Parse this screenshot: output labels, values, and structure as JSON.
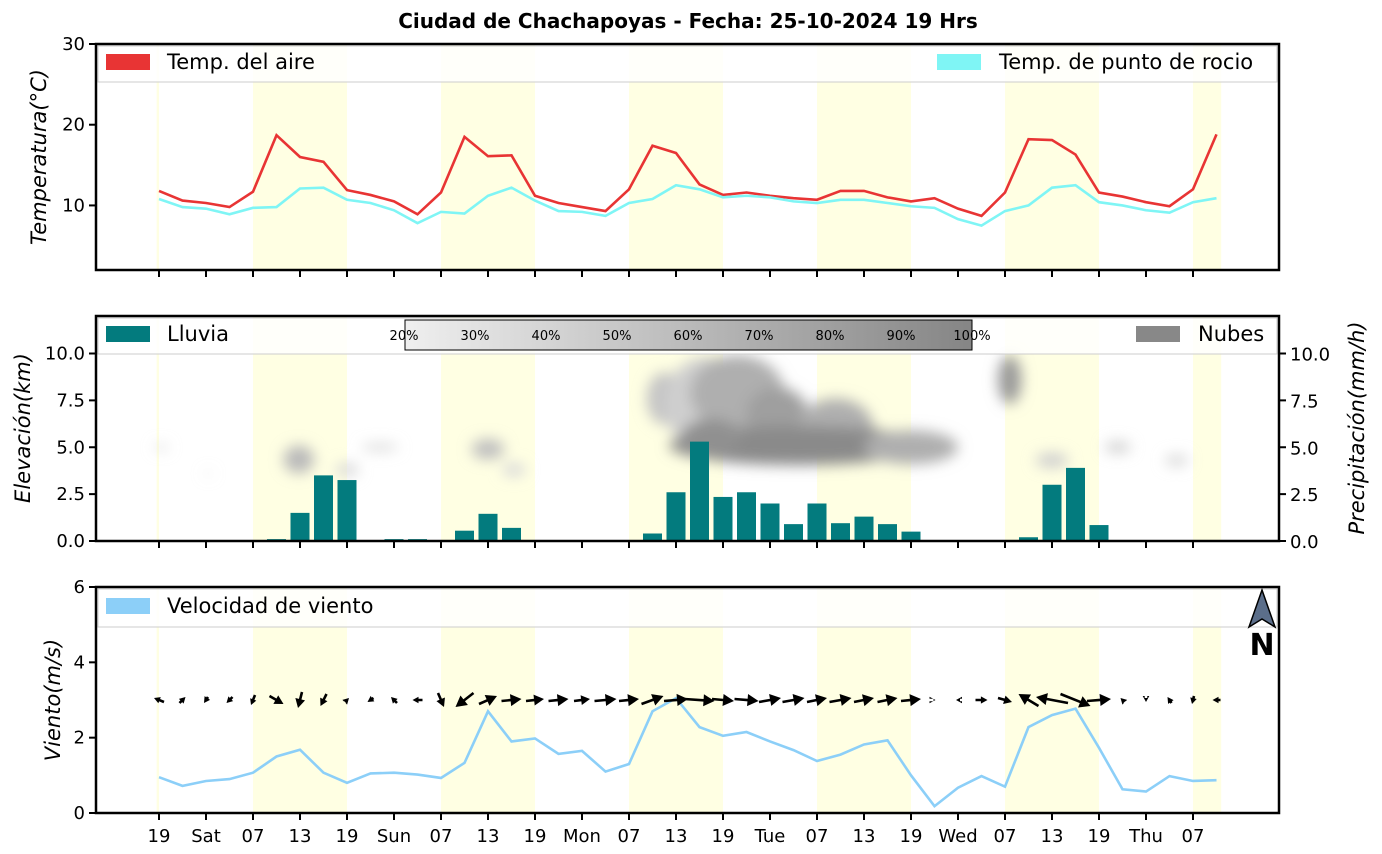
{
  "title": "Ciudad de Chachapoyas   -   Fecha: 25-10-2024 19 Hrs",
  "colors": {
    "temp_air": "#e83434",
    "dew_point": "#7ff5f5",
    "rain": "#037b7e",
    "clouds": "#888888",
    "wind": "#8ccff8",
    "daylight": "#ffffe3",
    "north_arrow": "#5b6e8a"
  },
  "north_label": "N",
  "x_ticks": [
    "19",
    "Sat",
    "07",
    "13",
    "19",
    "Sun",
    "07",
    "13",
    "19",
    "Mon",
    "07",
    "13",
    "19",
    "Tue",
    "07",
    "13",
    "19",
    "Wed",
    "07",
    "13",
    "19",
    "Thu",
    "07"
  ],
  "chart_data": [
    {
      "type": "line",
      "ylabel": "Temperatura(°C)",
      "ylim": [
        2,
        30
      ],
      "yticks": [
        10,
        20,
        30
      ],
      "daylight_bands": [
        [
          -0.1,
          0.0
        ],
        [
          4,
          8
        ],
        [
          12,
          16
        ],
        [
          20,
          24
        ],
        [
          28,
          32
        ],
        [
          36,
          40
        ],
        [
          44,
          45.2
        ]
      ],
      "x": [
        0,
        1,
        2,
        3,
        4,
        5,
        6,
        7,
        8,
        9,
        10,
        11,
        12,
        13,
        14,
        15,
        16,
        17,
        18,
        19,
        20,
        21,
        22,
        23,
        24,
        25,
        26,
        27,
        28,
        29,
        30,
        31,
        32,
        33,
        34,
        35,
        36,
        37,
        38,
        39,
        40,
        41,
        42,
        43,
        44,
        45
      ],
      "series": [
        {
          "name": "Temp. del aire",
          "legend": "top-left",
          "values": [
            11.8,
            10.6,
            10.3,
            9.8,
            11.7,
            18.7,
            16.0,
            15.4,
            11.9,
            11.3,
            10.5,
            8.9,
            11.6,
            18.5,
            16.1,
            16.2,
            11.2,
            10.3,
            9.8,
            9.3,
            12.0,
            17.4,
            16.5,
            12.6,
            11.3,
            11.6,
            11.2,
            10.9,
            10.7,
            11.8,
            11.8,
            11.0,
            10.5,
            10.9,
            9.6,
            8.7,
            11.6,
            18.2,
            18.1,
            16.3,
            11.6,
            11.1,
            10.4,
            9.9,
            12.0,
            18.8
          ]
        },
        {
          "name": "Temp. de punto de rocio",
          "legend": "top-right",
          "values": [
            10.8,
            9.8,
            9.6,
            8.9,
            9.7,
            9.8,
            12.1,
            12.2,
            10.7,
            10.3,
            9.4,
            7.8,
            9.2,
            9.0,
            11.2,
            12.2,
            10.6,
            9.3,
            9.2,
            8.7,
            10.3,
            10.8,
            12.5,
            12.0,
            11.0,
            11.2,
            11.0,
            10.5,
            10.3,
            10.7,
            10.7,
            10.3,
            9.9,
            9.7,
            8.3,
            7.5,
            9.3,
            10.0,
            12.2,
            12.5,
            10.4,
            10.0,
            9.4,
            9.1,
            10.4,
            10.9
          ]
        }
      ]
    },
    {
      "type": "bar",
      "ylabel": "Elevación(km)",
      "ylabel_right": "Precipitación(mm/h)",
      "ylim": [
        0,
        12
      ],
      "yticks": [
        0.0,
        2.5,
        5.0,
        7.5,
        10.0
      ],
      "yticks_right": [
        0.0,
        2.5,
        5.0,
        7.5,
        10.0
      ],
      "series": [
        {
          "name": "Lluvia",
          "legend": "top-left",
          "x": [
            0,
            1,
            2,
            3,
            4,
            5,
            6,
            7,
            8,
            9,
            10,
            11,
            12,
            13,
            14,
            15,
            16,
            17,
            18,
            19,
            20,
            21,
            22,
            23,
            24,
            25,
            26,
            27,
            28,
            29,
            30,
            31,
            32,
            33,
            34,
            35,
            36,
            37,
            38,
            39,
            40,
            41,
            42,
            43,
            44,
            45
          ],
          "values": [
            0,
            0,
            0,
            0,
            0.05,
            0.1,
            1.5,
            3.5,
            3.25,
            0.05,
            0.1,
            0.1,
            0.05,
            0.55,
            1.45,
            0.7,
            0.05,
            0,
            0,
            0,
            0.05,
            0.4,
            2.6,
            5.3,
            2.35,
            2.6,
            2.0,
            0.9,
            2.0,
            0.95,
            1.3,
            0.9,
            0.5,
            0.05,
            0,
            0,
            0.05,
            0.2,
            3.0,
            3.9,
            0.85,
            0,
            0,
            0,
            0.05,
            0.05
          ]
        },
        {
          "name": "Nubes",
          "legend": "top-right",
          "type": "contour",
          "unit": "%"
        }
      ],
      "colorbar_labels": [
        "20%",
        "30%",
        "40%",
        "50%",
        "60%",
        "70%",
        "80%",
        "90%",
        "100%"
      ],
      "cloud_cells": [
        {
          "x": 5.95,
          "y": 4.35,
          "rx": 0.65,
          "ry": 0.75,
          "level": 0.5
        },
        {
          "x": 8.0,
          "y": 3.8,
          "rx": 0.5,
          "ry": 0.35,
          "level": 0.2
        },
        {
          "x": 9.4,
          "y": 5.0,
          "rx": 0.8,
          "ry": 0.2,
          "level": 0.2
        },
        {
          "x": 14.0,
          "y": 4.9,
          "rx": 0.7,
          "ry": 0.55,
          "level": 0.45
        },
        {
          "x": 15.1,
          "y": 3.8,
          "rx": 0.5,
          "ry": 0.35,
          "level": 0.2
        },
        {
          "x": 21.5,
          "y": 7.6,
          "rx": 0.75,
          "ry": 1.4,
          "level": 0.4
        },
        {
          "x": 23.3,
          "y": 7.3,
          "rx": 1.8,
          "ry": 2.5,
          "level": 0.3
        },
        {
          "x": 24.6,
          "y": 7.9,
          "rx": 2.0,
          "ry": 2.0,
          "level": 0.6
        },
        {
          "x": 26.3,
          "y": 6.8,
          "rx": 1.3,
          "ry": 1.4,
          "level": 0.75
        },
        {
          "x": 28.8,
          "y": 6.0,
          "rx": 1.6,
          "ry": 1.6,
          "level": 0.6
        },
        {
          "x": 27.2,
          "y": 5.1,
          "rx": 5.5,
          "ry": 1.05,
          "level": 0.95
        },
        {
          "x": 23.5,
          "y": 5.5,
          "rx": 1.3,
          "ry": 1.0,
          "level": 0.9
        },
        {
          "x": 32.0,
          "y": 5.0,
          "rx": 2.0,
          "ry": 0.9,
          "level": 0.6
        },
        {
          "x": 36.2,
          "y": 8.6,
          "rx": 0.5,
          "ry": 1.3,
          "level": 0.8
        },
        {
          "x": 38.0,
          "y": 4.3,
          "rx": 0.7,
          "ry": 0.4,
          "level": 0.3
        },
        {
          "x": 40.8,
          "y": 5.0,
          "rx": 0.55,
          "ry": 0.3,
          "level": 0.3
        },
        {
          "x": 43.3,
          "y": 4.3,
          "rx": 0.5,
          "ry": 0.3,
          "level": 0.2
        },
        {
          "x": 2.1,
          "y": 3.6,
          "rx": 0.15,
          "ry": 0.1,
          "level": 0.2
        },
        {
          "x": 0.1,
          "y": 5.0,
          "rx": 0.3,
          "ry": 0.15,
          "level": 0.2
        }
      ]
    },
    {
      "type": "line",
      "ylabel": "Viento(m/s)",
      "ylim": [
        0,
        6
      ],
      "yticks": [
        0,
        2,
        4,
        6
      ],
      "x": [
        0,
        1,
        2,
        3,
        4,
        5,
        6,
        7,
        8,
        9,
        10,
        11,
        12,
        13,
        14,
        15,
        16,
        17,
        18,
        19,
        20,
        21,
        22,
        23,
        24,
        25,
        26,
        27,
        28,
        29,
        30,
        31,
        32,
        33,
        34,
        35,
        36,
        37,
        38,
        39,
        40,
        41,
        42,
        43,
        44,
        45
      ],
      "series": [
        {
          "name": "Velocidad de viento",
          "legend": "top-left",
          "values": [
            0.95,
            0.72,
            0.85,
            0.9,
            1.07,
            1.5,
            1.68,
            1.07,
            0.8,
            1.05,
            1.07,
            1.02,
            0.93,
            1.33,
            2.7,
            1.9,
            1.98,
            1.57,
            1.65,
            1.1,
            1.3,
            2.7,
            3.05,
            2.28,
            2.05,
            2.15,
            1.9,
            1.67,
            1.38,
            1.55,
            1.82,
            1.93,
            1.0,
            0.18,
            0.67,
            0.98,
            0.7,
            2.28,
            2.6,
            2.77,
            1.73,
            0.63,
            0.57,
            0.98,
            0.85,
            0.87
          ]
        }
      ],
      "wind_arrows": {
        "y": 3.0,
        "u": [
          -0.25,
          0.15,
          -0.1,
          -0.15,
          -0.1,
          0.35,
          -0.1,
          -0.15,
          0.1,
          -0.15,
          -0.15,
          -0.25,
          0.15,
          -0.45,
          0.45,
          0.5,
          0.45,
          0.5,
          0.4,
          0.55,
          0.5,
          0.55,
          0.6,
          0.75,
          0.55,
          0.6,
          0.55,
          0.55,
          0.5,
          0.55,
          0.5,
          0.5,
          0.5,
          0.05,
          -0.1,
          0.3,
          0.35,
          -0.5,
          -0.8,
          0.75,
          0.6,
          -0.1,
          0.0,
          -0.1,
          -0.05,
          -0.2
        ],
        "v": [
          0.1,
          0.15,
          -0.15,
          -0.15,
          -0.25,
          -0.2,
          -0.4,
          -0.3,
          0.1,
          -0.1,
          0.15,
          0.0,
          -0.35,
          -0.35,
          0.2,
          0.05,
          0.05,
          0.05,
          0.05,
          0.05,
          0.05,
          0.2,
          0.05,
          -0.05,
          -0.05,
          -0.05,
          0.1,
          0.1,
          0.1,
          0.1,
          0.1,
          0.1,
          0.05,
          0.0,
          0.0,
          0.0,
          -0.1,
          0.3,
          0.15,
          -0.3,
          0.05,
          0.1,
          -0.1,
          0.15,
          -0.2,
          0.0
        ]
      }
    }
  ]
}
